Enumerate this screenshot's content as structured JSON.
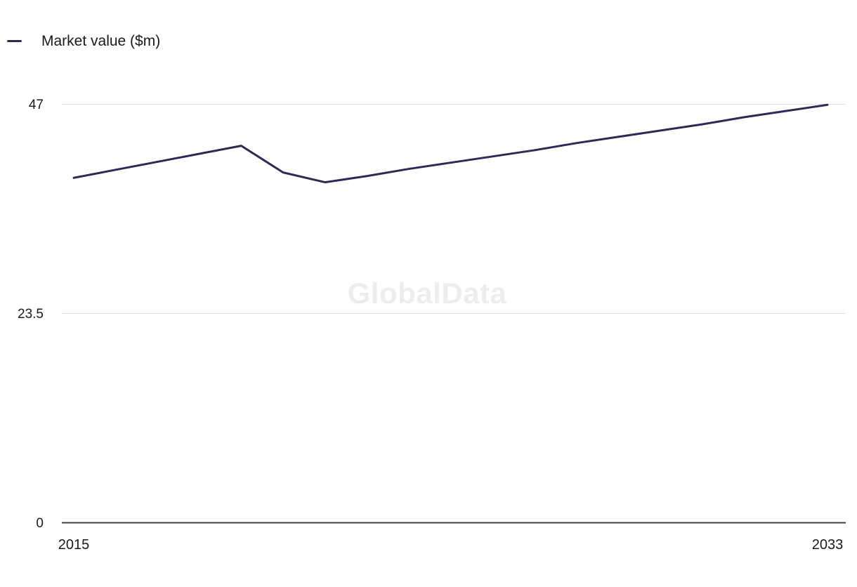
{
  "watermark": "GlobalData",
  "chart_data": {
    "type": "line",
    "legend": "Market value ($m)",
    "x": [
      2015,
      2016,
      2017,
      2018,
      2019,
      2020,
      2021,
      2022,
      2023,
      2024,
      2025,
      2026,
      2027,
      2028,
      2029,
      2030,
      2031,
      2032,
      2033
    ],
    "series": [
      {
        "name": "Market value ($m)",
        "values": [
          38.7,
          39.6,
          40.5,
          41.4,
          42.3,
          39.3,
          38.2,
          38.9,
          39.7,
          40.4,
          41.1,
          41.8,
          42.6,
          43.3,
          44.0,
          44.7,
          45.5,
          46.2,
          46.9
        ]
      }
    ],
    "title": "",
    "xlabel": "",
    "ylabel": "",
    "ylim": [
      0,
      47
    ],
    "yticks": [
      0,
      23.5,
      47
    ],
    "xtick_labels": [
      "2015",
      "2033"
    ],
    "color": "#2f2a54",
    "grid": "horizontal",
    "legend_position": "top-left"
  }
}
